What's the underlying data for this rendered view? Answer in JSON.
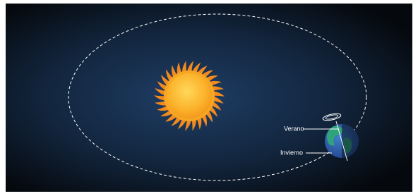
{
  "labels": {
    "summer": "Verano",
    "winter": "Invierno"
  }
}
